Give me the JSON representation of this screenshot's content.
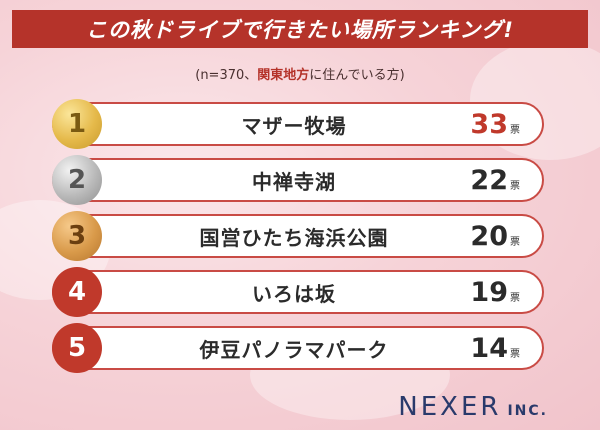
{
  "header": {
    "title": "この秋ドライブで行きたい場所ランキング!",
    "subtitle_pre": "(n=370、",
    "subtitle_accent": "関東地方",
    "subtitle_post": "に住んでいる方)"
  },
  "chart_data": {
    "type": "table",
    "title": "この秋ドライブで行きたい場所ランキング!",
    "unit": "票",
    "rows": [
      {
        "rank": "1",
        "place": "マザー牧場",
        "votes": 33,
        "votes_label": "33"
      },
      {
        "rank": "2",
        "place": "中禅寺湖",
        "votes": 22,
        "votes_label": "22"
      },
      {
        "rank": "3",
        "place": "国営ひたち海浜公園",
        "votes": 20,
        "votes_label": "20"
      },
      {
        "rank": "4",
        "place": "いろは坂",
        "votes": 19,
        "votes_label": "19"
      },
      {
        "rank": "5",
        "place": "伊豆パノラマパーク",
        "votes": 14,
        "votes_label": "14"
      }
    ]
  },
  "brand": {
    "name": "NEXER",
    "suffix": "INC."
  },
  "colors": {
    "accent": "#b5332a",
    "gold": "#e5b94a",
    "silver": "#b9b9b9",
    "bronze": "#d99a4a"
  }
}
